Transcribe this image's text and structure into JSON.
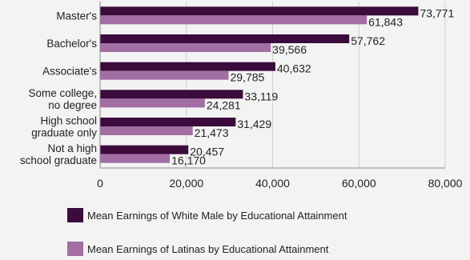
{
  "chart_data": {
    "type": "bar",
    "orientation": "horizontal",
    "categories": [
      [
        "Master's"
      ],
      [
        "Bachelor's"
      ],
      [
        "Associate's"
      ],
      [
        "Some college,",
        "no degree"
      ],
      [
        "High school",
        "graduate only"
      ],
      [
        "Not a high",
        "school graduate"
      ]
    ],
    "series": [
      {
        "name": "Mean Earnings of White Male by Educational Attainment",
        "color": "#3b0b3c",
        "values": [
          73771,
          57762,
          40632,
          33119,
          31429,
          20457
        ],
        "value_labels": [
          "73,771",
          "57,762",
          "40,632",
          "33,119",
          "31,429",
          "20,457"
        ]
      },
      {
        "name": "Mean Earnings of Latinas by Educational Attainment",
        "color": "#a26ea3",
        "values": [
          61843,
          39566,
          29785,
          24281,
          21473,
          16170
        ],
        "value_labels": [
          "61,843",
          "39,566",
          "29,785",
          "24,281",
          "21,473",
          "16,170"
        ]
      }
    ],
    "x_ticks": [
      0,
      20000,
      40000,
      60000,
      80000
    ],
    "x_tick_labels": [
      "0",
      "20,000",
      "40,000",
      "60,000",
      "80,000"
    ],
    "xlim": [
      0,
      80000
    ],
    "grid": true,
    "legend_position": "bottom"
  }
}
